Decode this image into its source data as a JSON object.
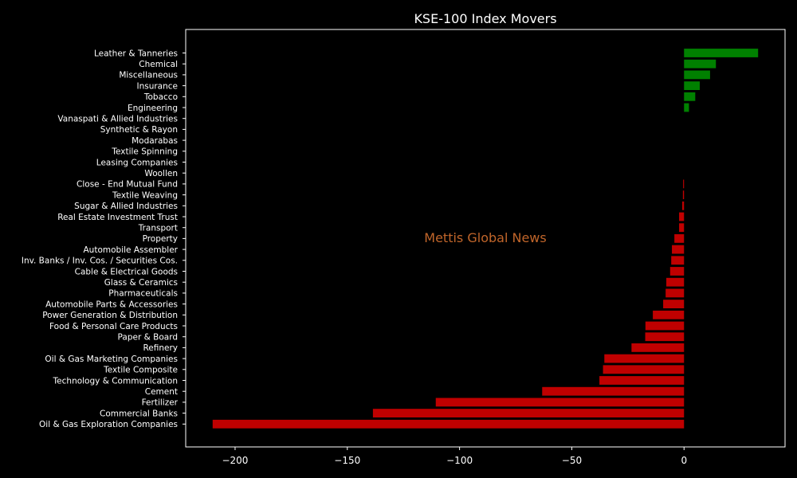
{
  "chart_data": {
    "type": "bar",
    "orientation": "horizontal",
    "title": "KSE-100 Index Movers",
    "xlabel": "",
    "ylabel": "",
    "xlim": [
      -222,
      45
    ],
    "xticks": [
      -200,
      -150,
      -100,
      -50,
      0
    ],
    "xtick_labels": [
      "−200",
      "−150",
      "−100",
      "−50",
      "0"
    ],
    "grid": false,
    "colors": {
      "positive": "#008000",
      "negative": "#c00000",
      "background": "#000000",
      "text": "#ffffff"
    },
    "watermark": {
      "text": "Mettis Global News",
      "color": "#c0652a"
    },
    "categories": [
      "Leather & Tanneries",
      "Chemical",
      "Miscellaneous",
      "Insurance",
      "Tobacco",
      "Engineering",
      "Vanaspati & Allied Industries",
      "Synthetic & Rayon",
      "Modarabas",
      "Textile Spinning",
      "Leasing Companies",
      "Woollen",
      "Close - End Mutual Fund",
      "Textile Weaving",
      "Sugar & Allied Industries",
      "Real Estate Investment Trust",
      "Transport",
      "Property",
      "Automobile Assembler",
      "Inv. Banks / Inv. Cos. / Securities Cos.",
      "Cable & Electrical Goods",
      "Glass & Ceramics",
      "Pharmaceuticals",
      "Automobile Parts & Accessories",
      "Power Generation & Distribution",
      "Food & Personal Care Products",
      "Paper & Board",
      "Refinery",
      "Oil & Gas Marketing Companies",
      "Textile Composite",
      "Technology & Communication",
      "Cement",
      "Fertilizer",
      "Commercial Banks",
      "Oil & Gas Exploration Companies"
    ],
    "values": [
      33,
      14.2,
      11.6,
      7,
      5,
      2.2,
      0,
      0,
      0,
      0,
      0,
      0,
      -0.4,
      -0.5,
      -0.8,
      -2.2,
      -2.2,
      -4.3,
      -5.4,
      -5.7,
      -6.2,
      -7.9,
      -8.2,
      -9.3,
      -13.9,
      -17.2,
      -17.3,
      -23.4,
      -35.5,
      -36.1,
      -37.7,
      -63.2,
      -110.6,
      -138.6,
      -210
    ]
  }
}
